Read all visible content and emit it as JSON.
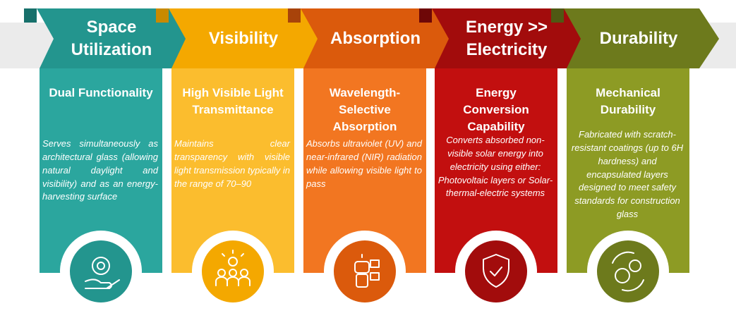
{
  "columns": [
    {
      "header": "Space Utilization",
      "title": "Dual Functionality",
      "text": "Serves simultaneously as architectural glass (allowing natural daylight and visibility) and as an energy-harvesting surface"
    },
    {
      "header": "Visibility",
      "title": "High Visible Light Transmittance",
      "text": "Maintains clear transparency with visible light transmission typically in the range of 70–90"
    },
    {
      "header": "Absorption",
      "title": "Wavelength-Selective Absorption",
      "text": "Absorbs ultraviolet (UV) and near-infrared (NIR) radiation while allowing visible light to pass"
    },
    {
      "header": "Energy >> Electricity",
      "title": "Energy Conversion Capability",
      "text": "Converts absorbed non-visible solar energy into electricity using either: Photovoltaic layers or Solar-thermal-electric systems"
    },
    {
      "header": "Durability",
      "title": "Mechanical Durability",
      "text": "Fabricated with scratch-resistant coatings (up to 6H hardness) and encapsulated layers designed to meet safety standards for construction glass"
    }
  ]
}
